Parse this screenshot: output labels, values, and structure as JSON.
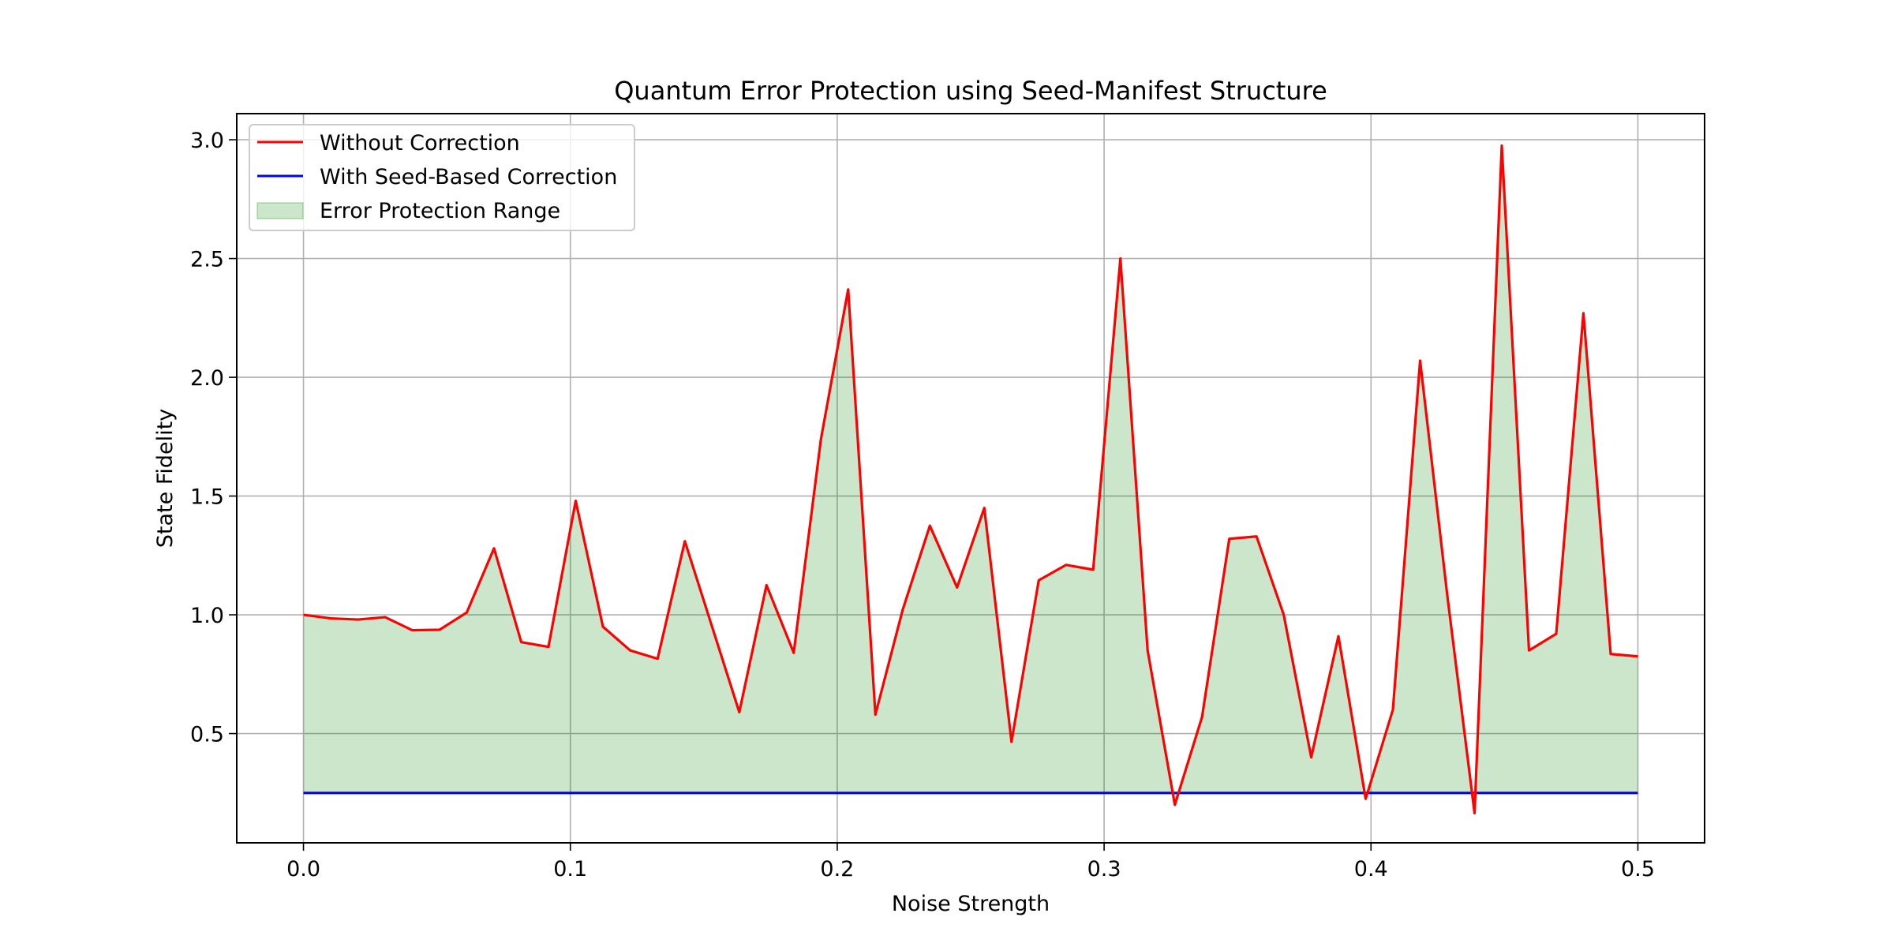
{
  "chart_data": {
    "type": "line",
    "title": "Quantum Error Protection using Seed-Manifest Structure",
    "xlabel": "Noise Strength",
    "ylabel": "State Fidelity",
    "xlim": [
      -0.025,
      0.525
    ],
    "ylim": [
      0.04,
      3.11
    ],
    "xticks": [
      "0.0",
      "0.1",
      "0.2",
      "0.3",
      "0.4",
      "0.5"
    ],
    "yticks": [
      "0.5",
      "1.0",
      "1.5",
      "2.0",
      "2.5",
      "3.0"
    ],
    "grid": true,
    "legend_position": "top-left",
    "x": [
      0.0,
      0.0102,
      0.0204,
      0.0306,
      0.0408,
      0.051,
      0.0612,
      0.0714,
      0.0816,
      0.0918,
      0.102,
      0.1122,
      0.1224,
      0.1327,
      0.1429,
      0.1531,
      0.1633,
      0.1735,
      0.1837,
      0.1939,
      0.2041,
      0.2143,
      0.2245,
      0.2347,
      0.2449,
      0.2551,
      0.2653,
      0.2755,
      0.2857,
      0.2959,
      0.3061,
      0.3163,
      0.3265,
      0.3367,
      0.3469,
      0.3571,
      0.3673,
      0.3776,
      0.3878,
      0.398,
      0.4082,
      0.4184,
      0.4286,
      0.4388,
      0.449,
      0.4592,
      0.4694,
      0.4796,
      0.4898,
      0.5
    ],
    "series": [
      {
        "name": "Without Correction",
        "color": "#ff0000",
        "values": [
          1.0,
          0.985,
          0.98,
          0.99,
          0.935,
          0.937,
          1.01,
          1.28,
          0.885,
          0.865,
          1.48,
          0.95,
          0.85,
          0.815,
          1.31,
          0.95,
          0.59,
          1.125,
          0.84,
          1.74,
          2.37,
          0.58,
          1.02,
          1.375,
          1.115,
          1.45,
          0.465,
          1.145,
          1.21,
          1.19,
          2.5,
          0.85,
          0.2,
          0.57,
          1.32,
          1.33,
          1.0,
          0.4,
          0.91,
          0.225,
          0.6,
          2.07,
          1.08,
          0.165,
          2.975,
          0.85,
          0.92,
          2.27,
          0.835,
          0.825
        ]
      },
      {
        "name": "With Seed-Based Correction",
        "color": "#0000ff",
        "values": [
          0.25,
          0.25,
          0.25,
          0.25,
          0.25,
          0.25,
          0.25,
          0.25,
          0.25,
          0.25,
          0.25,
          0.25,
          0.25,
          0.25,
          0.25,
          0.25,
          0.25,
          0.25,
          0.25,
          0.25,
          0.25,
          0.25,
          0.25,
          0.25,
          0.25,
          0.25,
          0.25,
          0.25,
          0.25,
          0.25,
          0.25,
          0.25,
          0.25,
          0.25,
          0.25,
          0.25,
          0.25,
          0.25,
          0.25,
          0.25,
          0.25,
          0.25,
          0.25,
          0.25,
          0.25,
          0.25,
          0.25,
          0.25,
          0.25,
          0.25
        ]
      }
    ],
    "fill": {
      "name": "Error Protection Range",
      "color": "#008000",
      "opacity": 0.2,
      "between": [
        "With Seed-Based Correction",
        "Without Correction"
      ]
    }
  }
}
